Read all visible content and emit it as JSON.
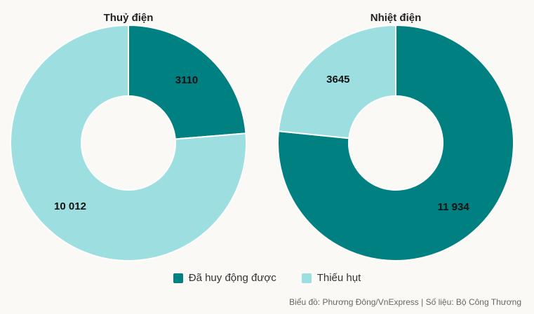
{
  "chart_data": [
    {
      "type": "pie",
      "title": "Thuỷ điện",
      "categories": [
        "Đã huy động được",
        "Thiếu hụt"
      ],
      "values": [
        3110,
        10012
      ],
      "value_labels": [
        "3110",
        "10 012"
      ]
    },
    {
      "type": "pie",
      "title": "Nhiệt điện",
      "categories": [
        "Đã huy động được",
        "Thiếu hụt"
      ],
      "values": [
        11934,
        3645
      ],
      "value_labels": [
        "11 934",
        "3645"
      ]
    }
  ],
  "legend": {
    "items": [
      {
        "label": "Đã huy động được",
        "color": "#008080"
      },
      {
        "label": "Thiếu hụt",
        "color": "#9ddfe0"
      }
    ],
    "placement": "bottom"
  },
  "footer": {
    "text": "Biểu đồ: Phương Đông/VnExpress | Số liệu: Bộ Công Thương"
  }
}
